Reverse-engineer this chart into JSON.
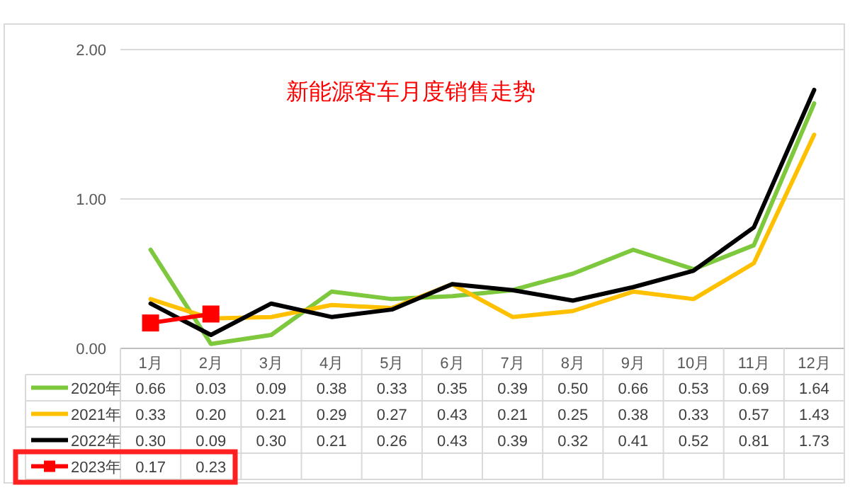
{
  "chart_data": {
    "type": "line",
    "title": "新能源客车月度销售走势",
    "categories": [
      "1月",
      "2月",
      "3月",
      "4月",
      "5月",
      "6月",
      "7月",
      "8月",
      "9月",
      "10月",
      "11月",
      "12月"
    ],
    "series": [
      {
        "name": "2020年",
        "color": "#7dc83c",
        "values": [
          0.66,
          0.03,
          0.09,
          0.38,
          0.33,
          0.35,
          0.39,
          0.5,
          0.66,
          0.53,
          0.69,
          1.64
        ],
        "value_labels": [
          "0.66",
          "0.03",
          "0.09",
          "0.38",
          "0.33",
          "0.35",
          "0.39",
          "0.50",
          "0.66",
          "0.53",
          "0.69",
          "1.64"
        ]
      },
      {
        "name": "2021年",
        "color": "#ffc000",
        "values": [
          0.33,
          0.2,
          0.21,
          0.29,
          0.27,
          0.43,
          0.21,
          0.25,
          0.38,
          0.33,
          0.57,
          1.43
        ],
        "value_labels": [
          "0.33",
          "0.20",
          "0.21",
          "0.29",
          "0.27",
          "0.43",
          "0.21",
          "0.25",
          "0.38",
          "0.33",
          "0.57",
          "1.43"
        ]
      },
      {
        "name": "2022年",
        "color": "#000000",
        "values": [
          0.3,
          0.09,
          0.3,
          0.21,
          0.26,
          0.43,
          0.39,
          0.32,
          0.41,
          0.52,
          0.81,
          1.73
        ],
        "value_labels": [
          "0.30",
          "0.09",
          "0.30",
          "0.21",
          "0.26",
          "0.43",
          "0.39",
          "0.32",
          "0.41",
          "0.52",
          "0.81",
          "1.73"
        ]
      },
      {
        "name": "2023年",
        "color": "#ff0000",
        "marker": "square",
        "values": [
          0.17,
          0.23,
          null,
          null,
          null,
          null,
          null,
          null,
          null,
          null,
          null,
          null
        ],
        "value_labels": [
          "0.17",
          "0.23",
          null,
          null,
          null,
          null,
          null,
          null,
          null,
          null,
          null,
          null
        ]
      }
    ],
    "ylim": [
      0,
      2
    ],
    "yticks": [
      {
        "value": 0,
        "label": "0.00"
      },
      {
        "value": 1,
        "label": "1.00"
      },
      {
        "value": 2,
        "label": "2.00"
      }
    ],
    "grid": "y",
    "legend": "bottom",
    "line_style": "solid"
  }
}
